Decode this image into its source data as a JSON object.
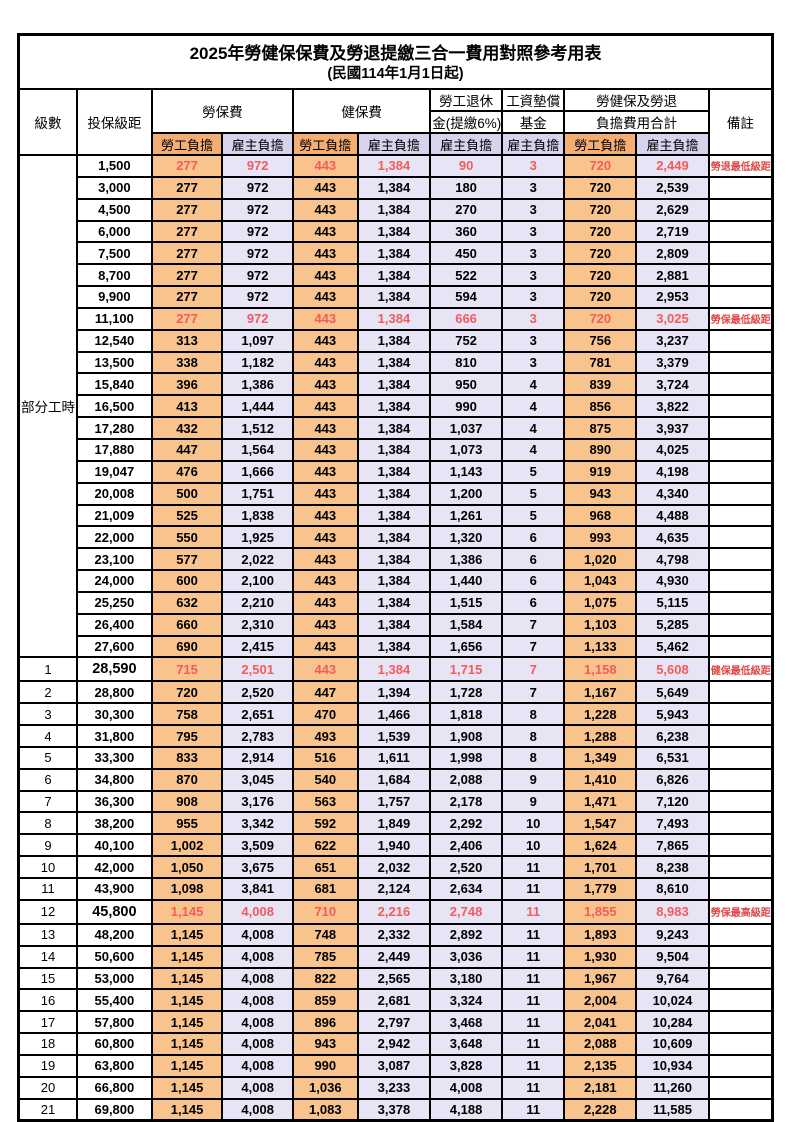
{
  "title": "2025年勞健保保費及勞退提繳三合一費用對照參考用表",
  "subtitle": "(民國114年1月1日起)",
  "header": {
    "level": "級數",
    "salary_bracket": "投保級距",
    "labor_insurance": "勞保費",
    "health_insurance": "健保費",
    "pension_line1": "勞工退休",
    "pension_line2": "金(提繳6%)",
    "wage_fund_line1": "工資墊償",
    "wage_fund_line2": "基金",
    "total_line1": "勞健保及勞退",
    "total_line2": "負擔費用合計",
    "remark": "備註",
    "employee": "勞工負擔",
    "employer": "雇主負擔"
  },
  "part_time_label": "部分工時",
  "part_time_rowspan": 23,
  "colors": {
    "employee_header_bg": "#f4ae73",
    "employer_header_bg": "#d8d3ec",
    "employee_cell_bg": "#f9c38d",
    "employer_cell_bg": "#e6e4f5",
    "highlight_text": "#f25c5c",
    "remark_text": "#e04848",
    "border": "#000000"
  },
  "columns": [
    "level",
    "salary",
    "labor_employee",
    "labor_employer",
    "health_employee",
    "health_employer",
    "pension_employer",
    "wage_fund_employer",
    "total_employee",
    "total_employer",
    "remark",
    "flags"
  ],
  "rows": [
    [
      "",
      "1,500",
      "277",
      "972",
      "443",
      "1,384",
      "90",
      "3",
      "720",
      "2,449",
      "勞退最低級距",
      "r"
    ],
    [
      "",
      "3,000",
      "277",
      "972",
      "443",
      "1,384",
      "180",
      "3",
      "720",
      "2,539",
      "",
      ""
    ],
    [
      "",
      "4,500",
      "277",
      "972",
      "443",
      "1,384",
      "270",
      "3",
      "720",
      "2,629",
      "",
      ""
    ],
    [
      "",
      "6,000",
      "277",
      "972",
      "443",
      "1,384",
      "360",
      "3",
      "720",
      "2,719",
      "",
      ""
    ],
    [
      "",
      "7,500",
      "277",
      "972",
      "443",
      "1,384",
      "450",
      "3",
      "720",
      "2,809",
      "",
      ""
    ],
    [
      "",
      "8,700",
      "277",
      "972",
      "443",
      "1,384",
      "522",
      "3",
      "720",
      "2,881",
      "",
      ""
    ],
    [
      "",
      "9,900",
      "277",
      "972",
      "443",
      "1,384",
      "594",
      "3",
      "720",
      "2,953",
      "",
      ""
    ],
    [
      "",
      "11,100",
      "277",
      "972",
      "443",
      "1,384",
      "666",
      "3",
      "720",
      "3,025",
      "勞保最低級距",
      "r"
    ],
    [
      "",
      "12,540",
      "313",
      "1,097",
      "443",
      "1,384",
      "752",
      "3",
      "756",
      "3,237",
      "",
      ""
    ],
    [
      "",
      "13,500",
      "338",
      "1,182",
      "443",
      "1,384",
      "810",
      "3",
      "781",
      "3,379",
      "",
      ""
    ],
    [
      "",
      "15,840",
      "396",
      "1,386",
      "443",
      "1,384",
      "950",
      "4",
      "839",
      "3,724",
      "",
      ""
    ],
    [
      "",
      "16,500",
      "413",
      "1,444",
      "443",
      "1,384",
      "990",
      "4",
      "856",
      "3,822",
      "",
      ""
    ],
    [
      "",
      "17,280",
      "432",
      "1,512",
      "443",
      "1,384",
      "1,037",
      "4",
      "875",
      "3,937",
      "",
      ""
    ],
    [
      "",
      "17,880",
      "447",
      "1,564",
      "443",
      "1,384",
      "1,073",
      "4",
      "890",
      "4,025",
      "",
      ""
    ],
    [
      "",
      "19,047",
      "476",
      "1,666",
      "443",
      "1,384",
      "1,143",
      "5",
      "919",
      "4,198",
      "",
      ""
    ],
    [
      "",
      "20,008",
      "500",
      "1,751",
      "443",
      "1,384",
      "1,200",
      "5",
      "943",
      "4,340",
      "",
      ""
    ],
    [
      "",
      "21,009",
      "525",
      "1,838",
      "443",
      "1,384",
      "1,261",
      "5",
      "968",
      "4,488",
      "",
      ""
    ],
    [
      "",
      "22,000",
      "550",
      "1,925",
      "443",
      "1,384",
      "1,320",
      "6",
      "993",
      "4,635",
      "",
      ""
    ],
    [
      "",
      "23,100",
      "577",
      "2,022",
      "443",
      "1,384",
      "1,386",
      "6",
      "1,020",
      "4,798",
      "",
      ""
    ],
    [
      "",
      "24,000",
      "600",
      "2,100",
      "443",
      "1,384",
      "1,440",
      "6",
      "1,043",
      "4,930",
      "",
      ""
    ],
    [
      "",
      "25,250",
      "632",
      "2,210",
      "443",
      "1,384",
      "1,515",
      "6",
      "1,075",
      "5,115",
      "",
      ""
    ],
    [
      "",
      "26,400",
      "660",
      "2,310",
      "443",
      "1,384",
      "1,584",
      "7",
      "1,103",
      "5,285",
      "",
      ""
    ],
    [
      "",
      "27,600",
      "690",
      "2,415",
      "443",
      "1,384",
      "1,656",
      "7",
      "1,133",
      "5,462",
      "",
      ""
    ],
    [
      "1",
      "28,590",
      "715",
      "2,501",
      "443",
      "1,384",
      "1,715",
      "7",
      "1,158",
      "5,608",
      "健保最低級距",
      "rb"
    ],
    [
      "2",
      "28,800",
      "720",
      "2,520",
      "447",
      "1,394",
      "1,728",
      "7",
      "1,167",
      "5,649",
      "",
      ""
    ],
    [
      "3",
      "30,300",
      "758",
      "2,651",
      "470",
      "1,466",
      "1,818",
      "8",
      "1,228",
      "5,943",
      "",
      ""
    ],
    [
      "4",
      "31,800",
      "795",
      "2,783",
      "493",
      "1,539",
      "1,908",
      "8",
      "1,288",
      "6,238",
      "",
      ""
    ],
    [
      "5",
      "33,300",
      "833",
      "2,914",
      "516",
      "1,611",
      "1,998",
      "8",
      "1,349",
      "6,531",
      "",
      ""
    ],
    [
      "6",
      "34,800",
      "870",
      "3,045",
      "540",
      "1,684",
      "2,088",
      "9",
      "1,410",
      "6,826",
      "",
      ""
    ],
    [
      "7",
      "36,300",
      "908",
      "3,176",
      "563",
      "1,757",
      "2,178",
      "9",
      "1,471",
      "7,120",
      "",
      ""
    ],
    [
      "8",
      "38,200",
      "955",
      "3,342",
      "592",
      "1,849",
      "2,292",
      "10",
      "1,547",
      "7,493",
      "",
      ""
    ],
    [
      "9",
      "40,100",
      "1,002",
      "3,509",
      "622",
      "1,940",
      "2,406",
      "10",
      "1,624",
      "7,865",
      "",
      ""
    ],
    [
      "10",
      "42,000",
      "1,050",
      "3,675",
      "651",
      "2,032",
      "2,520",
      "11",
      "1,701",
      "8,238",
      "",
      ""
    ],
    [
      "11",
      "43,900",
      "1,098",
      "3,841",
      "681",
      "2,124",
      "2,634",
      "11",
      "1,779",
      "8,610",
      "",
      ""
    ],
    [
      "12",
      "45,800",
      "1,145",
      "4,008",
      "710",
      "2,216",
      "2,748",
      "11",
      "1,855",
      "8,983",
      "勞保最高級距",
      "rb"
    ],
    [
      "13",
      "48,200",
      "1,145",
      "4,008",
      "748",
      "2,332",
      "2,892",
      "11",
      "1,893",
      "9,243",
      "",
      ""
    ],
    [
      "14",
      "50,600",
      "1,145",
      "4,008",
      "785",
      "2,449",
      "3,036",
      "11",
      "1,930",
      "9,504",
      "",
      ""
    ],
    [
      "15",
      "53,000",
      "1,145",
      "4,008",
      "822",
      "2,565",
      "3,180",
      "11",
      "1,967",
      "9,764",
      "",
      ""
    ],
    [
      "16",
      "55,400",
      "1,145",
      "4,008",
      "859",
      "2,681",
      "3,324",
      "11",
      "2,004",
      "10,024",
      "",
      ""
    ],
    [
      "17",
      "57,800",
      "1,145",
      "4,008",
      "896",
      "2,797",
      "3,468",
      "11",
      "2,041",
      "10,284",
      "",
      ""
    ],
    [
      "18",
      "60,800",
      "1,145",
      "4,008",
      "943",
      "2,942",
      "3,648",
      "11",
      "2,088",
      "10,609",
      "",
      ""
    ],
    [
      "19",
      "63,800",
      "1,145",
      "4,008",
      "990",
      "3,087",
      "3,828",
      "11",
      "2,135",
      "10,934",
      "",
      ""
    ],
    [
      "20",
      "66,800",
      "1,145",
      "4,008",
      "1,036",
      "3,233",
      "4,008",
      "11",
      "2,181",
      "11,260",
      "",
      ""
    ],
    [
      "21",
      "69,800",
      "1,145",
      "4,008",
      "1,083",
      "3,378",
      "4,188",
      "11",
      "2,228",
      "11,585",
      "",
      ""
    ]
  ]
}
